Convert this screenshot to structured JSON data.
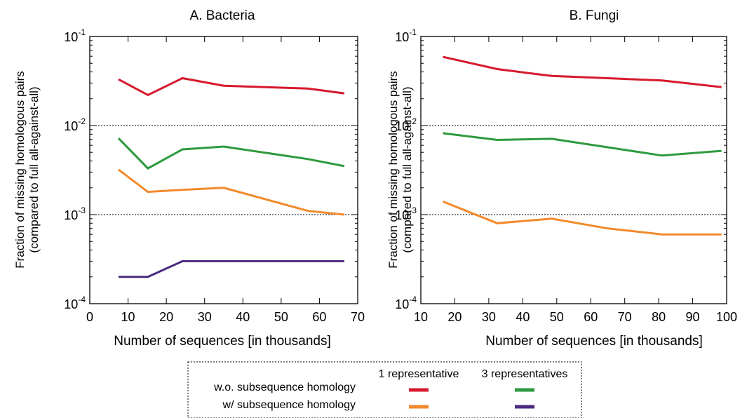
{
  "chart_data": [
    {
      "type": "line",
      "title": "A. Bacteria",
      "xlabel": "Number of sequences [in thousands]",
      "ylabel": [
        "Fraction of missing homologous pairs",
        "(compared to full all-against-all)"
      ],
      "xlim": [
        0,
        70
      ],
      "ylim": [
        0.0001,
        0.1
      ],
      "yscale": "log",
      "xticks": [
        0,
        10,
        20,
        30,
        40,
        50,
        60,
        70
      ],
      "yticks": [
        {
          "value": 0.1,
          "base": "10",
          "exp": "-1"
        },
        {
          "value": 0.01,
          "base": "10",
          "exp": "-2"
        },
        {
          "value": 0.001,
          "base": "10",
          "exp": "-3"
        },
        {
          "value": 0.0001,
          "base": "10",
          "exp": "-4"
        }
      ],
      "gridlines_y": [
        0.01,
        0.001
      ],
      "series": [
        {
          "key": "wo_1rep",
          "color": "#d7192d",
          "x": [
            7.5,
            15.2,
            24.2,
            35,
            57,
            66.5
          ],
          "values": [
            0.033,
            0.022,
            0.034,
            0.028,
            0.026,
            0.023
          ]
        },
        {
          "key": "wo_3rep",
          "color": "#2e9a3e",
          "x": [
            7.5,
            15.2,
            24.2,
            35,
            57,
            66.5
          ],
          "values": [
            0.0072,
            0.0033,
            0.0054,
            0.0058,
            0.0042,
            0.0035
          ]
        },
        {
          "key": "w_1rep",
          "color": "#f28a2b",
          "x": [
            7.5,
            15.2,
            24.2,
            35,
            57,
            66.5
          ],
          "values": [
            0.0032,
            0.0018,
            0.0019,
            0.002,
            0.0011,
            0.001
          ]
        },
        {
          "key": "w_3rep",
          "color": "#4b2a7e",
          "x": [
            7.5,
            15.2,
            24.2,
            35,
            57,
            66.5
          ],
          "values": [
            0.0002,
            0.0002,
            0.0003,
            0.0003,
            0.0003,
            0.0003
          ]
        }
      ]
    },
    {
      "type": "line",
      "title": "B. Fungi",
      "xlabel": "Number of sequences [in thousands]",
      "ylabel": [
        "Fraction of missing homologous pairs",
        "(compared to full all-against-all)"
      ],
      "xlim": [
        10,
        100
      ],
      "ylim": [
        0.0001,
        0.1
      ],
      "yscale": "log",
      "xticks": [
        10,
        20,
        30,
        40,
        50,
        60,
        70,
        80,
        90,
        100
      ],
      "yticks": [
        {
          "value": 0.1,
          "base": "10",
          "exp": "-1"
        },
        {
          "value": 0.01,
          "base": "10",
          "exp": "-2"
        },
        {
          "value": 0.001,
          "base": "10",
          "exp": "-3"
        },
        {
          "value": 0.0001,
          "base": "10",
          "exp": "-4"
        }
      ],
      "gridlines_y": [
        0.01,
        0.001
      ],
      "series": [
        {
          "key": "wo_1rep",
          "color": "#d7192d",
          "x": [
            16.5,
            32.5,
            48.5,
            65,
            81,
            98.5
          ],
          "values": [
            0.059,
            0.043,
            0.036,
            0.034,
            0.032,
            0.027
          ]
        },
        {
          "key": "wo_3rep",
          "color": "#2e9a3e",
          "x": [
            16.5,
            32.5,
            48.5,
            65,
            81,
            98.5
          ],
          "values": [
            0.0082,
            0.0069,
            0.0071,
            0.0057,
            0.0046,
            0.0052
          ]
        },
        {
          "key": "w_1rep",
          "color": "#f28a2b",
          "x": [
            16.5,
            32.5,
            48.5,
            65,
            81,
            98.5
          ],
          "values": [
            0.0014,
            0.0008,
            0.0009,
            0.0007,
            0.0006,
            0.0006
          ]
        }
      ]
    }
  ],
  "legend": {
    "col_headers": [
      "1 representative",
      "3 representatives"
    ],
    "row_labels": [
      "w.o. subsequence homology",
      "w/ subsequence homology"
    ],
    "swatches": [
      {
        "row": 0,
        "col": 0,
        "color": "#d7192d"
      },
      {
        "row": 0,
        "col": 1,
        "color": "#2e9a3e"
      },
      {
        "row": 1,
        "col": 0,
        "color": "#f28a2b"
      },
      {
        "row": 1,
        "col": 1,
        "color": "#4b2a7e"
      }
    ]
  }
}
